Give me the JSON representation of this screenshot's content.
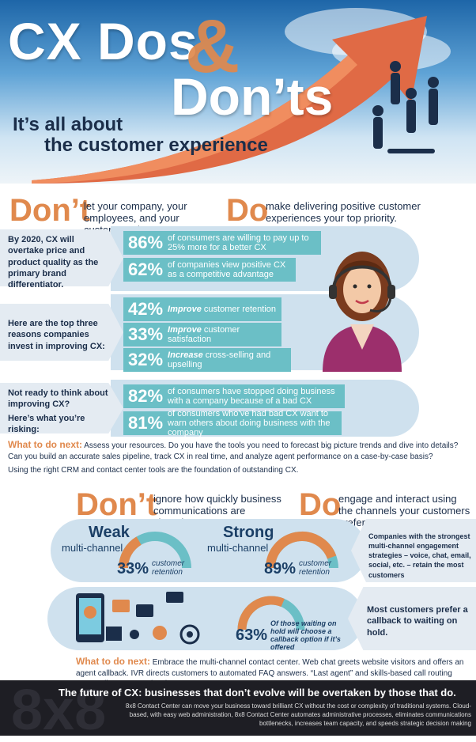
{
  "header": {
    "title_cx": "CX Dos",
    "title_amp": "&",
    "title_donts": "Don’ts",
    "subtitle_line1": "It’s all about",
    "subtitle_line2": "the customer experience"
  },
  "section1": {
    "dont_word": "Don’t",
    "dont_text": "let your company, your employees, and your customers down.",
    "do_word": "Do",
    "do_text": "make delivering positive customer experiences your top priority.",
    "group1_label": "By 2020, CX will overtake price and product quality as the primary brand differentiator.",
    "group1_stats": [
      {
        "pct": "86%",
        "text": "of consumers are willing to pay up to 25% more for a better CX"
      },
      {
        "pct": "62%",
        "text": "of companies view positive CX as a competitive advantage"
      }
    ],
    "group2_label": "Here are the top three reasons companies invest in improving CX:",
    "group2_stats": [
      {
        "pct": "42%",
        "bold": "Improve",
        "text": " customer retention"
      },
      {
        "pct": "33%",
        "bold": "Improve",
        "text": " customer satisfaction"
      },
      {
        "pct": "32%",
        "bold": "Increase",
        "text": " cross-selling and upselling"
      }
    ],
    "group3_label_a": "Not ready to think about improving CX?",
    "group3_label_b": "Here’s what you’re risking:",
    "group3_stats": [
      {
        "pct": "82%",
        "text": "of consumers have stopped doing business with a company because of a bad CX"
      },
      {
        "pct": "81%",
        "text": "of consumers who’ve had bad CX want to warn others about doing business with the company"
      }
    ],
    "next_heading": "What to do next:",
    "next_text": "Assess your resources. Do you have the tools you need to forecast big picture trends and dive into details? Can you build an accurate sales pipeline, track CX in real time, and analyze agent performance on a case-by-case basis?",
    "next_text2": "Using the right CRM and contact center tools are the foundation of outstanding CX."
  },
  "section2": {
    "dont_word": "Don’t",
    "dont_text": "ignore how quickly business communications are changing.",
    "do_word": "Do",
    "do_text": "engage and interact using the channels your customers prefer.",
    "weak_title": "Weak",
    "weak_sub": "multi-channel",
    "weak_pct": "33%",
    "weak_unit": "customer retention",
    "weak_value": 0.33,
    "strong_title": "Strong",
    "strong_sub": "multi-channel",
    "strong_pct": "89%",
    "strong_unit": "customer retention",
    "strong_value": 0.89,
    "side1": "Companies with the strongest multi-channel engagement strategies – voice, chat, email, social, etc. – retain the most customers",
    "callback_pct": "63%",
    "callback_text": "Of those waiting on hold will choose a callback option if it’s offered",
    "callback_value": 0.63,
    "side2": "Most customers prefer a callback to waiting on hold.",
    "next_heading": "What to do next:",
    "next_text": "Embrace the multi-channel contact center. Web chat greets website visitors and offers an agent callback. IVR directs customers to automated FAQ answers. “Last agent” and skills-based call routing personalize CX seamlessly."
  },
  "footer": {
    "headline": "The future of CX: businesses that don’t evolve will be overtaken by those that do.",
    "body": "8x8 Contact Center can move your business toward brilliant CX without the cost or complexity of traditional systems. Cloud-based, with easy web administration, 8x8 Contact Center automates administrative processes, eliminates communications bottlenecks, increases team capacity, and speeds strategic decision making",
    "watermark": "8x8"
  },
  "colors": {
    "accent_orange": "#e0894d",
    "teal": "#6bbfc6",
    "navy": "#1b2e4a"
  }
}
